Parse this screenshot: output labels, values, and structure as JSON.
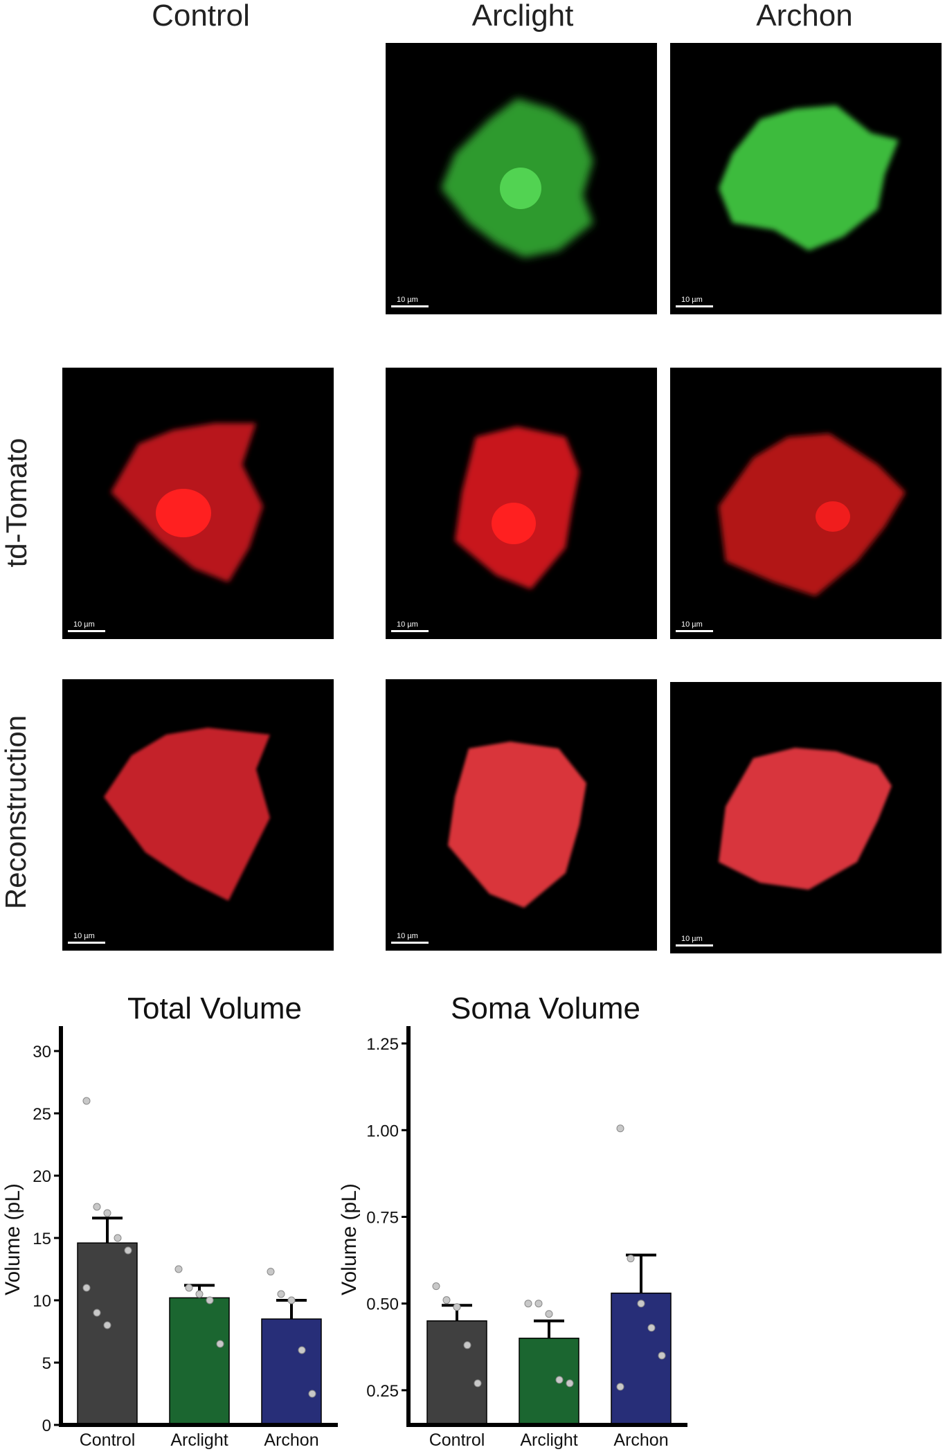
{
  "columns": [
    "Control",
    "Arclight",
    "Archon"
  ],
  "rows": [
    "td-Tomato",
    "Reconstruction"
  ],
  "scalebar_label": "10 µm",
  "colors": {
    "green_cell": "#3fbf3f",
    "red_cell": "#e11a1a",
    "recon_cell": "#d52a30",
    "control_bar": "#404040",
    "arclight_bar": "#1b6630",
    "archon_bar": "#272e78",
    "dots": "#c8c8c8"
  },
  "chart_data": [
    {
      "type": "bar",
      "title": "Total Volume",
      "ylabel": "Volume (pL)",
      "xlabel": "",
      "categories": [
        "Control",
        "Arclight",
        "Archon"
      ],
      "values": [
        14.6,
        10.2,
        8.5
      ],
      "error": [
        2.0,
        1.0,
        1.5
      ],
      "points": [
        [
          26,
          17.5,
          17,
          15,
          14,
          11,
          9,
          8
        ],
        [
          12.5,
          11,
          10.5,
          10,
          6.5
        ],
        [
          12.3,
          10.5,
          10,
          6,
          2.5
        ]
      ],
      "ylim": [
        0,
        32
      ],
      "yticks": [
        0,
        5,
        10,
        15,
        20,
        25,
        30
      ],
      "ytick_labels": [
        "0",
        "5",
        "10",
        "15",
        "20",
        "25",
        "30"
      ],
      "grid": false
    },
    {
      "type": "bar",
      "title": "Soma Volume",
      "ylabel": "Volume (pL)",
      "xlabel": "",
      "categories": [
        "Control",
        "Arclight",
        "Archon"
      ],
      "values": [
        0.45,
        0.4,
        0.53
      ],
      "error": [
        0.045,
        0.05,
        0.11
      ],
      "points": [
        [
          0.55,
          0.51,
          0.49,
          0.38,
          0.27
        ],
        [
          0.5,
          0.5,
          0.47,
          0.28,
          0.27
        ],
        [
          1.005,
          0.63,
          0.5,
          0.43,
          0.35,
          0.26
        ]
      ],
      "ylim": [
        0.15,
        1.3
      ],
      "yticks": [
        0.25,
        0.5,
        0.75,
        1.0,
        1.25
      ],
      "ytick_labels": [
        "0.25",
        "0.50",
        "0.75",
        "1.00",
        "1.25"
      ],
      "grid": false
    }
  ]
}
